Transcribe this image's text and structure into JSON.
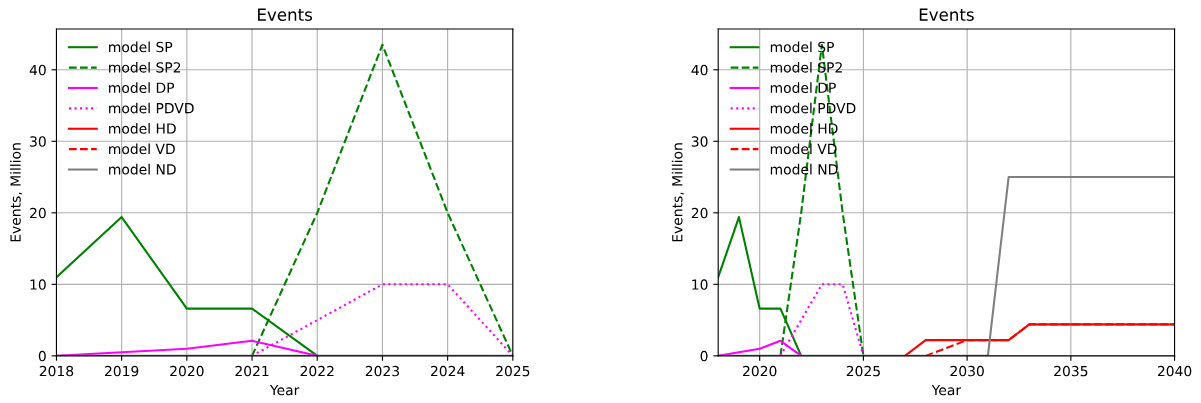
{
  "chart_data": [
    {
      "type": "line",
      "title": "Events",
      "xlabel": "Year",
      "ylabel": "Events, Million",
      "x": [
        2018,
        2019,
        2020,
        2021,
        2022,
        2023,
        2024,
        2025
      ],
      "xlim": [
        2018,
        2025
      ],
      "xticks": [
        2018,
        2019,
        2020,
        2021,
        2022,
        2023,
        2024,
        2025
      ],
      "ylim": [
        0,
        45.7
      ],
      "yticks": [
        0,
        10,
        20,
        30,
        40
      ],
      "grid": true,
      "legend": "top left",
      "series": [
        {
          "name": "model SP",
          "color": "#008000",
          "line_style": "solid",
          "values": [
            11,
            19.4,
            6.6,
            6.6,
            0,
            null,
            null,
            null
          ]
        },
        {
          "name": "model SP2",
          "color": "#008000",
          "line_style": "dashed",
          "values": [
            null,
            null,
            null,
            0,
            20,
            43.5,
            20,
            0
          ]
        },
        {
          "name": "model DP",
          "color": "#ff00ff",
          "line_style": "solid",
          "values": [
            0,
            0.5,
            1,
            2.1,
            0,
            null,
            null,
            null
          ]
        },
        {
          "name": "model PDVD",
          "color": "#ff00ff",
          "line_style": "dotted",
          "values": [
            null,
            null,
            null,
            0,
            5,
            10,
            10,
            0
          ]
        },
        {
          "name": "model HD",
          "color": "#ff0000",
          "line_style": "solid",
          "values": [
            null,
            null,
            null,
            null,
            null,
            null,
            null,
            null
          ]
        },
        {
          "name": "model VD",
          "color": "#ff0000",
          "line_style": "dashed",
          "values": [
            null,
            null,
            null,
            null,
            null,
            null,
            null,
            null
          ]
        },
        {
          "name": "model ND",
          "color": "#808080",
          "line_style": "solid",
          "values": [
            0,
            0,
            0,
            0,
            0,
            0,
            0,
            0
          ]
        }
      ]
    },
    {
      "type": "line",
      "title": "Events",
      "xlabel": "Year",
      "ylabel": "Events, Million",
      "x": [
        2018,
        2019,
        2020,
        2021,
        2022,
        2023,
        2024,
        2025,
        2026,
        2027,
        2028,
        2029,
        2030,
        2031,
        2032,
        2033,
        2034,
        2035,
        2036,
        2037,
        2038,
        2039,
        2040
      ],
      "xlim": [
        2018,
        2040
      ],
      "xticks": [
        2020,
        2025,
        2030,
        2035,
        2040
      ],
      "ylim": [
        0,
        45.7
      ],
      "yticks": [
        0,
        10,
        20,
        30,
        40
      ],
      "grid": true,
      "legend": "top left",
      "series": [
        {
          "name": "model SP",
          "color": "#008000",
          "line_style": "solid",
          "values": [
            11,
            19.4,
            6.6,
            6.6,
            0,
            null,
            null,
            null,
            null,
            null,
            null,
            null,
            null,
            null,
            null,
            null,
            null,
            null,
            null,
            null,
            null,
            null,
            null
          ]
        },
        {
          "name": "model SP2",
          "color": "#008000",
          "line_style": "dashed",
          "values": [
            null,
            null,
            null,
            0,
            20,
            43.5,
            20,
            0,
            null,
            null,
            null,
            null,
            null,
            null,
            null,
            null,
            null,
            null,
            null,
            null,
            null,
            null,
            null
          ]
        },
        {
          "name": "model DP",
          "color": "#ff00ff",
          "line_style": "solid",
          "values": [
            0,
            0.5,
            1,
            2.1,
            0,
            null,
            null,
            null,
            null,
            null,
            null,
            null,
            null,
            null,
            null,
            null,
            null,
            null,
            null,
            null,
            null,
            null,
            null
          ]
        },
        {
          "name": "model PDVD",
          "color": "#ff00ff",
          "line_style": "dotted",
          "values": [
            null,
            null,
            null,
            0,
            5,
            10,
            10,
            0,
            null,
            null,
            null,
            null,
            null,
            null,
            null,
            null,
            null,
            null,
            null,
            null,
            null,
            null,
            null
          ]
        },
        {
          "name": "model HD",
          "color": "#ff0000",
          "line_style": "solid",
          "values": [
            null,
            null,
            null,
            null,
            null,
            null,
            null,
            null,
            null,
            0,
            2.2,
            2.2,
            2.2,
            2.2,
            2.2,
            4.4,
            4.4,
            4.4,
            4.4,
            4.4,
            4.4,
            4.4,
            4.4
          ]
        },
        {
          "name": "model VD",
          "color": "#ff0000",
          "line_style": "dashed",
          "values": [
            null,
            null,
            null,
            null,
            null,
            null,
            null,
            null,
            null,
            null,
            0,
            1.1,
            2.2,
            2.2,
            2.2,
            4.4,
            4.4,
            4.4,
            4.4,
            4.4,
            4.4,
            4.4,
            4.4
          ]
        },
        {
          "name": "model ND",
          "color": "#808080",
          "line_style": "solid",
          "values": [
            0,
            0,
            0,
            0,
            0,
            0,
            0,
            0,
            0,
            0,
            0,
            0,
            0,
            0,
            25,
            25,
            25,
            25,
            25,
            25,
            25,
            25,
            25
          ]
        }
      ]
    }
  ]
}
